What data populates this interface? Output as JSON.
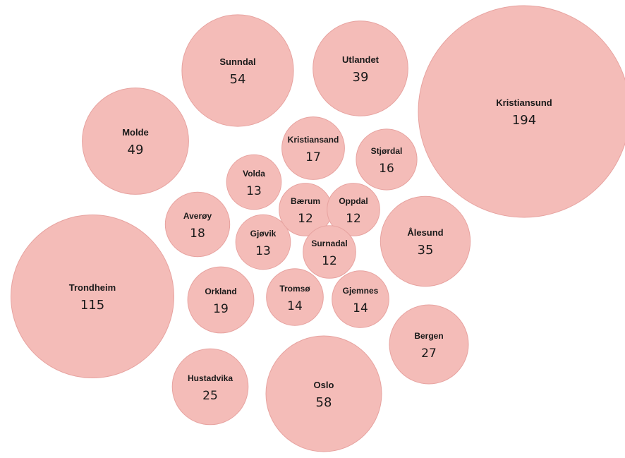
{
  "chart_data": {
    "type": "bubble",
    "title": "",
    "bubble_color": "#f4bcb8",
    "bubble_stroke": "#e7a3a0",
    "items": [
      {
        "name": "Kristiansund",
        "value": 194
      },
      {
        "name": "Trondheim",
        "value": 115
      },
      {
        "name": "Oslo",
        "value": 58
      },
      {
        "name": "Sunndal",
        "value": 54
      },
      {
        "name": "Molde",
        "value": 49
      },
      {
        "name": "Utlandet",
        "value": 39
      },
      {
        "name": "Ålesund",
        "value": 35
      },
      {
        "name": "Bergen",
        "value": 27
      },
      {
        "name": "Hustadvika",
        "value": 25
      },
      {
        "name": "Orkland",
        "value": 19
      },
      {
        "name": "Averøy",
        "value": 18
      },
      {
        "name": "Kristiansand",
        "value": 17
      },
      {
        "name": "Stjørdal",
        "value": 16
      },
      {
        "name": "Tromsø",
        "value": 14
      },
      {
        "name": "Gjemnes",
        "value": 14
      },
      {
        "name": "Volda",
        "value": 13
      },
      {
        "name": "Gjøvik",
        "value": 13
      },
      {
        "name": "Bærum",
        "value": 12
      },
      {
        "name": "Oppdal",
        "value": 12
      },
      {
        "name": "Surnadal",
        "value": 12
      }
    ]
  }
}
